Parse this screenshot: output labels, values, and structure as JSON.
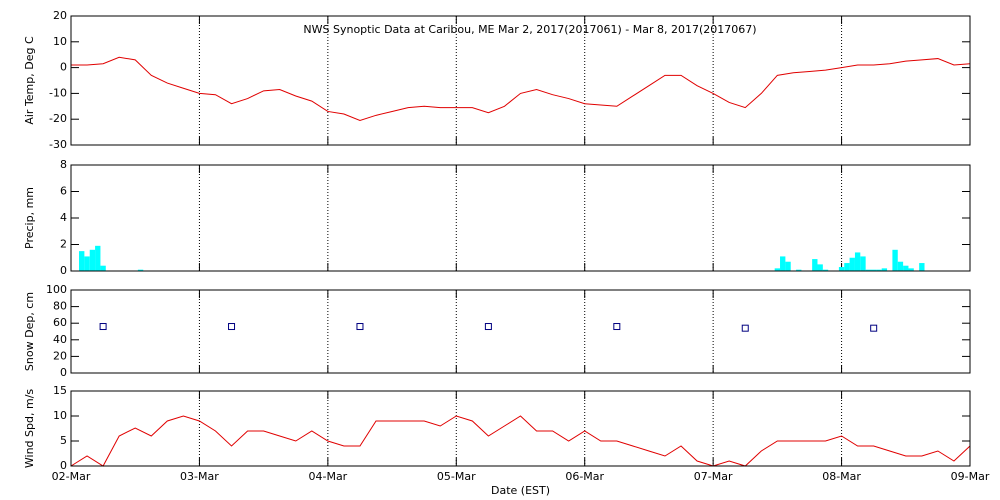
{
  "chart_data": [
    {
      "type": "line",
      "title": "NWS Synoptic Data at Caribou, ME   Mar  2, 2017(2017061) - Mar  8, 2017(2017067)",
      "ylabel": "Air Temp, Deg C",
      "color": "#e00000",
      "x": [
        0,
        3,
        6,
        9,
        12,
        15,
        18,
        21,
        24,
        27,
        30,
        33,
        36,
        39,
        42,
        45,
        48,
        51,
        54,
        57,
        60,
        63,
        66,
        69,
        72,
        75,
        78,
        81,
        84,
        87,
        90,
        93,
        96,
        99,
        102,
        105,
        108,
        111,
        114,
        117,
        120,
        123,
        126,
        129,
        132,
        135,
        138,
        141,
        144,
        147,
        150,
        153,
        156,
        159,
        162,
        165,
        168
      ],
      "values": [
        1,
        1,
        1.5,
        4,
        3,
        -3,
        -6,
        -8,
        -10,
        -10.5,
        -14,
        -12,
        -9,
        -8.5,
        -11,
        -13,
        -17,
        -18,
        -20.5,
        -18.5,
        -17,
        -15.5,
        -15,
        -15.5,
        -15.5,
        -15.5,
        -17.5,
        -15,
        -10,
        -8.5,
        -10.5,
        -12,
        -14,
        -14.5,
        -15,
        -11,
        -7,
        -3,
        -3,
        -7,
        -10,
        -13.5,
        -15.5,
        -10,
        -3,
        -2,
        -1.5,
        -1,
        0,
        1,
        1,
        1.5,
        2.5,
        3,
        3.5,
        1,
        1.5
      ],
      "xlim": [
        0,
        168
      ],
      "ylim": [
        -30,
        20
      ],
      "yticks": [
        -30,
        -20,
        -10,
        0,
        10,
        20
      ]
    },
    {
      "type": "bar",
      "ylabel": "Precip, mm",
      "color": "#00ffff",
      "x": [
        2,
        3,
        4,
        5,
        6,
        13,
        132,
        133,
        134,
        136,
        139,
        140,
        141,
        144,
        145,
        146,
        147,
        148,
        149,
        150,
        151,
        152,
        154,
        155,
        156,
        157,
        159
      ],
      "values": [
        1.5,
        1.1,
        1.6,
        1.9,
        0.4,
        0.1,
        0.2,
        1.1,
        0.7,
        0.1,
        0.9,
        0.5,
        0.1,
        0.3,
        0.6,
        1.0,
        1.4,
        1.1,
        0.1,
        0.1,
        0.1,
        0.2,
        1.6,
        0.7,
        0.4,
        0.2,
        0.6
      ],
      "xlim": [
        0,
        168
      ],
      "ylim": [
        0,
        8
      ],
      "yticks": [
        0,
        2,
        4,
        6,
        8
      ]
    },
    {
      "type": "scatter",
      "ylabel": "Snow Dep, cm",
      "color": "#000080",
      "x": [
        6,
        30,
        54,
        78,
        102,
        126,
        150
      ],
      "values": [
        56,
        56,
        56,
        56,
        56,
        54,
        54
      ],
      "xlim": [
        0,
        168
      ],
      "ylim": [
        0,
        100
      ],
      "yticks": [
        0,
        20,
        40,
        60,
        80,
        100
      ]
    },
    {
      "type": "line",
      "ylabel": "Wind Spd, m/s",
      "xlabel": "Date (EST)",
      "color": "#e00000",
      "x": [
        0,
        3,
        6,
        9,
        12,
        15,
        18,
        21,
        24,
        27,
        30,
        33,
        36,
        39,
        42,
        45,
        48,
        51,
        54,
        57,
        60,
        63,
        66,
        69,
        72,
        75,
        78,
        81,
        84,
        87,
        90,
        93,
        96,
        99,
        102,
        105,
        108,
        111,
        114,
        117,
        120,
        123,
        126,
        129,
        132,
        135,
        138,
        141,
        144,
        147,
        150,
        153,
        156,
        159,
        162,
        165,
        168
      ],
      "values": [
        0,
        2,
        0,
        6,
        7.6,
        6,
        9,
        10,
        9,
        7,
        4,
        7,
        7,
        6,
        5,
        7,
        5,
        4,
        4,
        9,
        9,
        9,
        9,
        8,
        10,
        9,
        6,
        8,
        10,
        7,
        7,
        5,
        7,
        5,
        5,
        4,
        3,
        2,
        4,
        1,
        0,
        1,
        0,
        3,
        5,
        5,
        5,
        5,
        6,
        4,
        4,
        3,
        2,
        2,
        3,
        1,
        4
      ],
      "xlim": [
        0,
        168
      ],
      "ylim": [
        0,
        15
      ],
      "yticks": [
        0,
        5,
        10,
        15
      ],
      "xticks": [
        {
          "value": 0,
          "label": "02-Mar"
        },
        {
          "value": 24,
          "label": "03-Mar"
        },
        {
          "value": 48,
          "label": "04-Mar"
        },
        {
          "value": 72,
          "label": "05-Mar"
        },
        {
          "value": 96,
          "label": "06-Mar"
        },
        {
          "value": 120,
          "label": "07-Mar"
        },
        {
          "value": 144,
          "label": "08-Mar"
        },
        {
          "value": 168,
          "label": "09-Mar"
        }
      ],
      "grid": true
    }
  ]
}
